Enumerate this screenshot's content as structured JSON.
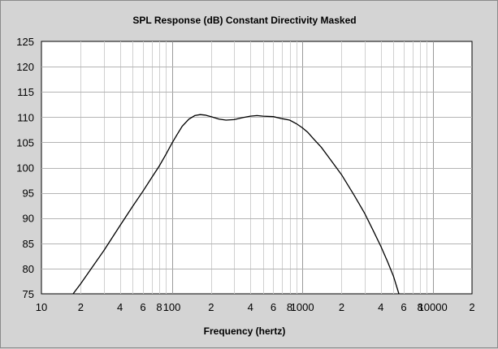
{
  "chart_data": {
    "type": "line",
    "title": "SPL Response (dB)   Constant Directivity   Masked",
    "xlabel": "Frequency (hertz)",
    "ylabel": "",
    "x_scale": "log",
    "xlim": [
      10,
      20000
    ],
    "ylim": [
      75,
      125
    ],
    "grid": true,
    "y_ticks": [
      75,
      80,
      85,
      90,
      95,
      100,
      105,
      110,
      115,
      120,
      125
    ],
    "x_ticks": [
      {
        "value": 10,
        "label": "10"
      },
      {
        "value": 20,
        "label": "2"
      },
      {
        "value": 40,
        "label": "4"
      },
      {
        "value": 60,
        "label": "6"
      },
      {
        "value": 80,
        "label": "8"
      },
      {
        "value": 100,
        "label": "100"
      },
      {
        "value": 200,
        "label": "2"
      },
      {
        "value": 400,
        "label": "4"
      },
      {
        "value": 600,
        "label": "6"
      },
      {
        "value": 800,
        "label": "8"
      },
      {
        "value": 1000,
        "label": "1000"
      },
      {
        "value": 2000,
        "label": "2"
      },
      {
        "value": 4000,
        "label": "4"
      },
      {
        "value": 6000,
        "label": "6"
      },
      {
        "value": 8000,
        "label": "8"
      },
      {
        "value": 10000,
        "label": "10000"
      },
      {
        "value": 20000,
        "label": "2"
      }
    ],
    "series": [
      {
        "color": "#000000",
        "points": [
          [
            17.5,
            75
          ],
          [
            20,
            77
          ],
          [
            25,
            80.6
          ],
          [
            30,
            83.5
          ],
          [
            40,
            88.5
          ],
          [
            50,
            92.3
          ],
          [
            60,
            95.3
          ],
          [
            70,
            98
          ],
          [
            80,
            100.3
          ],
          [
            90,
            102.6
          ],
          [
            100,
            104.8
          ],
          [
            110,
            106.6
          ],
          [
            120,
            108.2
          ],
          [
            135,
            109.6
          ],
          [
            150,
            110.3
          ],
          [
            165,
            110.5
          ],
          [
            180,
            110.4
          ],
          [
            200,
            110.1
          ],
          [
            230,
            109.6
          ],
          [
            260,
            109.4
          ],
          [
            300,
            109.5
          ],
          [
            350,
            109.9
          ],
          [
            400,
            110.2
          ],
          [
            450,
            110.3
          ],
          [
            500,
            110.2
          ],
          [
            600,
            110.1
          ],
          [
            700,
            109.7
          ],
          [
            800,
            109.4
          ],
          [
            900,
            108.7
          ],
          [
            1000,
            107.9
          ],
          [
            1100,
            107.0
          ],
          [
            1200,
            105.9
          ],
          [
            1400,
            104.0
          ],
          [
            1600,
            102.0
          ],
          [
            2000,
            98.6
          ],
          [
            2500,
            94.5
          ],
          [
            3000,
            91.0
          ],
          [
            3500,
            87.5
          ],
          [
            4000,
            84.4
          ],
          [
            4500,
            81.4
          ],
          [
            5000,
            78.5
          ],
          [
            5500,
            75.0
          ]
        ]
      }
    ]
  }
}
